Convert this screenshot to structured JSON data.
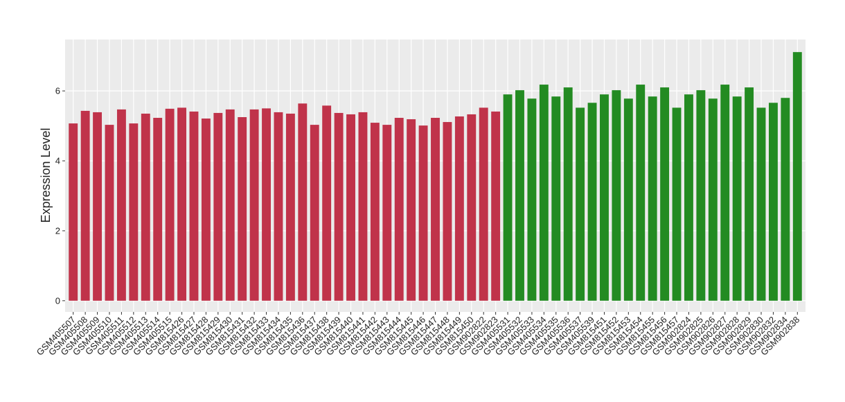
{
  "chart_data": {
    "type": "bar",
    "y_label": "Expression Level",
    "categories": [
      "GSM405507",
      "GSM405508",
      "GSM405509",
      "GSM405510",
      "GSM405511",
      "GSM405512",
      "GSM405513",
      "GSM405514",
      "GSM405515",
      "GSM815426",
      "GSM815427",
      "GSM815428",
      "GSM815429",
      "GSM815430",
      "GSM815431",
      "GSM815432",
      "GSM815433",
      "GSM815434",
      "GSM815435",
      "GSM815436",
      "GSM815437",
      "GSM815438",
      "GSM815439",
      "GSM815440",
      "GSM815441",
      "GSM815442",
      "GSM815443",
      "GSM815444",
      "GSM815445",
      "GSM815446",
      "GSM815447",
      "GSM815448",
      "GSM815449",
      "GSM815450",
      "GSM902822",
      "GSM902823",
      "GSM405531",
      "GSM405532",
      "GSM405533",
      "GSM405534",
      "GSM405535",
      "GSM405536",
      "GSM405537",
      "GSM405539",
      "GSM815451",
      "GSM815452",
      "GSM815453",
      "GSM815454",
      "GSM815455",
      "GSM815456",
      "GSM815457",
      "GSM902824",
      "GSM902825",
      "GSM902826",
      "GSM902827",
      "GSM902828",
      "GSM902829",
      "GSM902830",
      "GSM902832",
      "GSM902834",
      "GSM902838"
    ],
    "values": [
      5.07,
      5.43,
      5.39,
      5.03,
      5.47,
      5.07,
      5.35,
      5.23,
      5.49,
      5.52,
      5.41,
      5.21,
      5.37,
      5.47,
      5.25,
      5.47,
      5.5,
      5.39,
      5.35,
      5.64,
      5.03,
      5.58,
      5.37,
      5.33,
      5.39,
      5.09,
      5.03,
      5.23,
      5.19,
      5.01,
      5.23,
      5.11,
      5.27,
      5.33,
      5.52,
      5.41,
      5.9,
      6.02,
      5.78,
      6.18,
      5.84,
      6.1,
      5.52,
      5.66,
      5.9,
      6.02,
      5.78,
      6.18,
      5.84,
      6.1,
      5.52,
      5.9,
      6.02,
      5.78,
      6.18,
      5.84,
      6.1,
      5.52,
      5.66,
      5.8,
      7.11
    ],
    "colors": [
      "#c0334a",
      "#c0334a",
      "#c0334a",
      "#c0334a",
      "#c0334a",
      "#c0334a",
      "#c0334a",
      "#c0334a",
      "#c0334a",
      "#c0334a",
      "#c0334a",
      "#c0334a",
      "#c0334a",
      "#c0334a",
      "#c0334a",
      "#c0334a",
      "#c0334a",
      "#c0334a",
      "#c0334a",
      "#c0334a",
      "#c0334a",
      "#c0334a",
      "#c0334a",
      "#c0334a",
      "#c0334a",
      "#c0334a",
      "#c0334a",
      "#c0334a",
      "#c0334a",
      "#c0334a",
      "#c0334a",
      "#c0334a",
      "#c0334a",
      "#c0334a",
      "#c0334a",
      "#c0334a",
      "#238b22",
      "#238b22",
      "#238b22",
      "#238b22",
      "#238b22",
      "#238b22",
      "#238b22",
      "#238b22",
      "#238b22",
      "#238b22",
      "#238b22",
      "#238b22",
      "#238b22",
      "#238b22",
      "#238b22",
      "#238b22",
      "#238b22",
      "#238b22",
      "#238b22",
      "#238b22",
      "#238b22",
      "#238b22",
      "#238b22",
      "#238b22",
      "#238b22"
    ],
    "ylim": [
      -0.32,
      7.47
    ],
    "yticks": [
      0,
      2,
      4,
      6
    ],
    "grid": true
  }
}
